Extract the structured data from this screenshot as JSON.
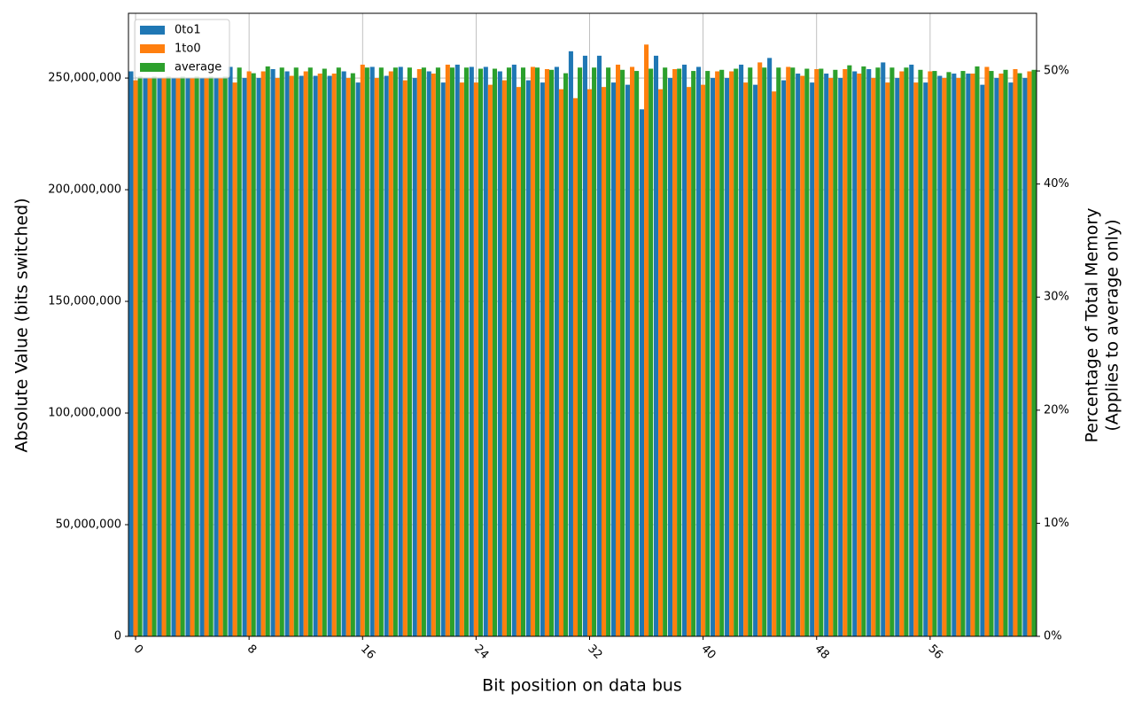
{
  "chart_data": {
    "type": "bar",
    "xlabel": "Bit position on data bus",
    "ylabel": "Absolute Value (bits switched)",
    "y2label": [
      "Percentage of Total Memory",
      "(Applies to average only)"
    ],
    "categories": [
      "0",
      null,
      null,
      null,
      null,
      null,
      null,
      null,
      "8",
      null,
      null,
      null,
      null,
      null,
      null,
      null,
      "16",
      null,
      null,
      null,
      null,
      null,
      null,
      null,
      "24",
      null,
      null,
      null,
      null,
      null,
      null,
      null,
      "32",
      null,
      null,
      null,
      null,
      null,
      null,
      null,
      "40",
      null,
      null,
      null,
      null,
      null,
      null,
      null,
      "48",
      null,
      null,
      null,
      null,
      null,
      null,
      null,
      "56",
      null,
      null,
      null,
      null,
      null,
      null,
      null
    ],
    "series": [
      {
        "name": "0to1",
        "color": "#1f77b4",
        "values": [
          253000000,
          250000000,
          250000000,
          250000000,
          250000000,
          250000000,
          250000000,
          255000000,
          250000000,
          250000000,
          254000000,
          253000000,
          251000000,
          251000000,
          251000000,
          253000000,
          248000000,
          255000000,
          251000000,
          255000000,
          250000000,
          253000000,
          248000000,
          256000000,
          255000000,
          255000000,
          253000000,
          256000000,
          249000000,
          248000000,
          255000000,
          262000000,
          260000000,
          260000000,
          248000000,
          247000000,
          236000000,
          260000000,
          250000000,
          256000000,
          255000000,
          250000000,
          250000000,
          256000000,
          247000000,
          259000000,
          249000000,
          252000000,
          248000000,
          252000000,
          250000000,
          253000000,
          254000000,
          257000000,
          250000000,
          256000000,
          248000000,
          251000000,
          252000000,
          252000000,
          247000000,
          250000000,
          248000000,
          250000000
        ]
      },
      {
        "name": "1to0",
        "color": "#ff7f0e",
        "values": [
          249000000,
          250000000,
          250000000,
          250000000,
          250000000,
          250000000,
          250000000,
          248000000,
          253000000,
          253000000,
          250000000,
          251000000,
          253000000,
          252000000,
          252000000,
          250000000,
          256000000,
          250000000,
          253000000,
          249000000,
          254000000,
          252000000,
          256000000,
          248000000,
          248000000,
          247000000,
          249000000,
          246000000,
          255000000,
          254000000,
          245000000,
          241000000,
          245000000,
          246000000,
          256000000,
          255000000,
          265000000,
          245000000,
          254000000,
          246000000,
          247000000,
          253000000,
          253000000,
          248000000,
          257000000,
          244000000,
          255000000,
          251000000,
          254000000,
          250000000,
          254000000,
          252000000,
          250000000,
          248000000,
          253000000,
          248000000,
          253000000,
          250000000,
          250000000,
          252000000,
          255000000,
          252000000,
          254000000,
          253000000
        ]
      },
      {
        "name": "average",
        "color": "#2ca02c",
        "axis": "y2",
        "values": [
          49.5,
          49.5,
          49.5,
          49.5,
          49.5,
          49.5,
          49.5,
          50.3,
          49.8,
          50.4,
          50.3,
          50.3,
          50.3,
          50.2,
          50.3,
          49.8,
          50.3,
          50.3,
          50.3,
          50.3,
          50.3,
          50.3,
          50.3,
          50.3,
          50.2,
          50.2,
          50.3,
          50.3,
          50.3,
          50.1,
          49.8,
          50.3,
          50.3,
          50.3,
          50.1,
          50.0,
          50.2,
          50.3,
          50.2,
          50.0,
          50.0,
          50.1,
          50.2,
          50.3,
          50.3,
          50.3,
          50.3,
          50.2,
          50.2,
          50.1,
          50.5,
          50.4,
          50.3,
          50.3,
          50.3,
          50.1,
          50.0,
          49.9,
          50.0,
          50.4,
          50.0,
          50.1,
          49.8,
          50.1
        ]
      }
    ],
    "ylim": [
      0,
      279000000
    ],
    "yticks": [
      0,
      {
        "value": 50000000,
        "label": "50,000,000"
      },
      {
        "value": 100000000,
        "label": "100,000,000"
      },
      {
        "value": 150000000,
        "label": "150,000,000"
      },
      {
        "value": 200000000,
        "label": "200,000,000"
      },
      {
        "value": 250000000,
        "label": "250,000,000"
      }
    ],
    "y2lim": [
      0,
      55.1
    ],
    "y2ticks": [
      {
        "value": 0,
        "label": "0%"
      },
      {
        "value": 10,
        "label": "10%"
      },
      {
        "value": 20,
        "label": "20%"
      },
      {
        "value": 30,
        "label": "30%"
      },
      {
        "value": 40,
        "label": "40%"
      },
      {
        "value": 50,
        "label": "50%"
      }
    ],
    "grid": true,
    "legend": "upper left"
  }
}
